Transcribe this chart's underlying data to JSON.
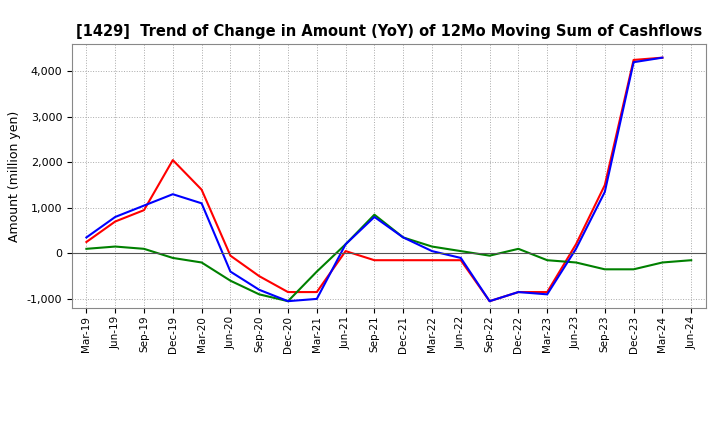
{
  "title": "[1429]  Trend of Change in Amount (YoY) of 12Mo Moving Sum of Cashflows",
  "ylabel": "Amount (million yen)",
  "ylim": [
    -1200,
    4600
  ],
  "yticks": [
    -1000,
    0,
    1000,
    2000,
    3000,
    4000
  ],
  "x_labels": [
    "Mar-19",
    "Jun-19",
    "Sep-19",
    "Dec-19",
    "Mar-20",
    "Jun-20",
    "Sep-20",
    "Dec-20",
    "Mar-21",
    "Jun-21",
    "Sep-21",
    "Dec-21",
    "Mar-22",
    "Jun-22",
    "Sep-22",
    "Dec-22",
    "Mar-23",
    "Jun-23",
    "Sep-23",
    "Dec-23",
    "Mar-24",
    "Jun-24"
  ],
  "operating": [
    250,
    700,
    950,
    2050,
    1400,
    -50,
    -500,
    -850,
    -850,
    50,
    -150,
    -150,
    -150,
    -150,
    -1050,
    -850,
    -850,
    200,
    1500,
    4250,
    4300,
    null
  ],
  "investing": [
    100,
    150,
    100,
    -100,
    -200,
    -600,
    -900,
    -1050,
    -400,
    200,
    850,
    350,
    150,
    50,
    -50,
    100,
    -150,
    -200,
    -350,
    -350,
    -200,
    -150
  ],
  "free": [
    350,
    800,
    1050,
    1300,
    1100,
    -400,
    -800,
    -1050,
    -1000,
    200,
    800,
    350,
    50,
    -100,
    -1050,
    -850,
    -900,
    100,
    1350,
    4200,
    4300,
    null
  ],
  "colors": {
    "operating": "#ff0000",
    "investing": "#008000",
    "free": "#0000ff"
  },
  "background_color": "#ffffff",
  "grid_color": "#aaaaaa"
}
